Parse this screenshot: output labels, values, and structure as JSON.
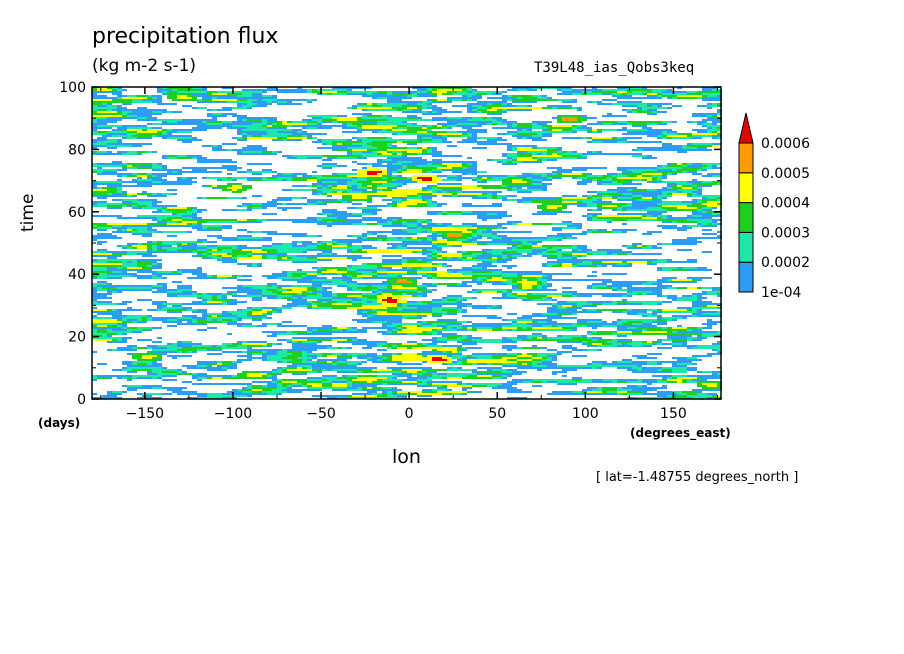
{
  "chart_data": {
    "type": "heatmap",
    "title": "precipitation flux",
    "units": "(kg m-2 s-1)",
    "experiment": "T39L48_ias_Qobs3keq",
    "xlabel": "lon",
    "xunits": "(degrees_east)",
    "ylabel": "time",
    "yunits": "(days)",
    "annotation": "[ lat=-1.48755 degrees_north ]",
    "xlim": [
      -180,
      177
    ],
    "ylim": [
      0,
      100
    ],
    "xticks": [
      -150,
      -100,
      -50,
      0,
      50,
      100,
      150
    ],
    "yticks": [
      0,
      20,
      40,
      60,
      80,
      100
    ],
    "colorbar": {
      "levels": [
        "1e-04",
        "0.0002",
        "0.0003",
        "0.0004",
        "0.0005",
        "0.0006"
      ],
      "colors": [
        "#2b9df3",
        "#1de8a8",
        "#1fcf1f",
        "#ffff00",
        "#ff9a00",
        "#e60000"
      ],
      "extend": "max"
    },
    "hotspots": [
      {
        "lon": 8,
        "time": 71,
        "level": 5
      },
      {
        "lon": -22,
        "time": 73,
        "level": 5
      },
      {
        "lon": 15,
        "time": 13,
        "level": 5
      },
      {
        "lon": -12,
        "time": 32,
        "level": 5
      },
      {
        "lon": -5,
        "time": 38,
        "level": 4
      },
      {
        "lon": 25,
        "time": 53,
        "level": 4
      },
      {
        "lon": 90,
        "time": 90,
        "level": 4
      },
      {
        "lon": -150,
        "time": 14,
        "level": 3
      },
      {
        "lon": -90,
        "time": 8,
        "level": 3
      },
      {
        "lon": 170,
        "time": 5,
        "level": 3
      },
      {
        "lon": -130,
        "time": 97,
        "level": 3
      },
      {
        "lon": 60,
        "time": 70,
        "level": 3
      },
      {
        "lon": -100,
        "time": 68,
        "level": 3
      },
      {
        "lon": 80,
        "time": 62,
        "level": 3
      },
      {
        "lon": -30,
        "time": 65,
        "level": 3
      }
    ]
  }
}
